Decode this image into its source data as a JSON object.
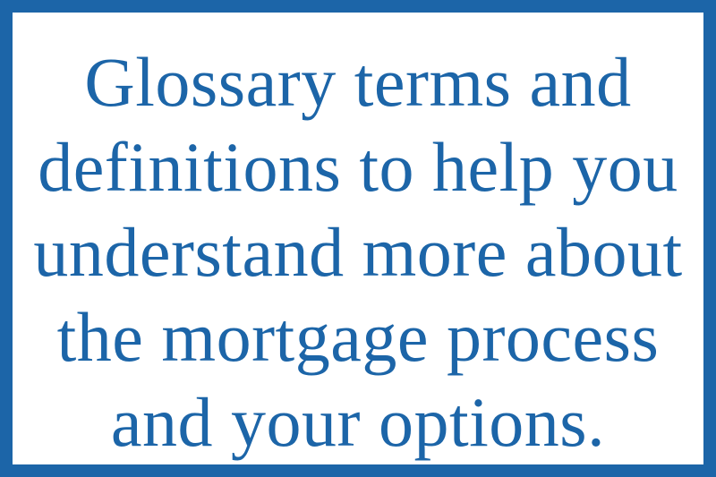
{
  "colors": {
    "border": "#1c65a8",
    "text": "#1c65a8",
    "background": "#ffffff"
  },
  "message": {
    "lines": [
      "Glossary terms and",
      "definitions to help you",
      "understand more about",
      "the mortgage process",
      "and your options."
    ]
  }
}
